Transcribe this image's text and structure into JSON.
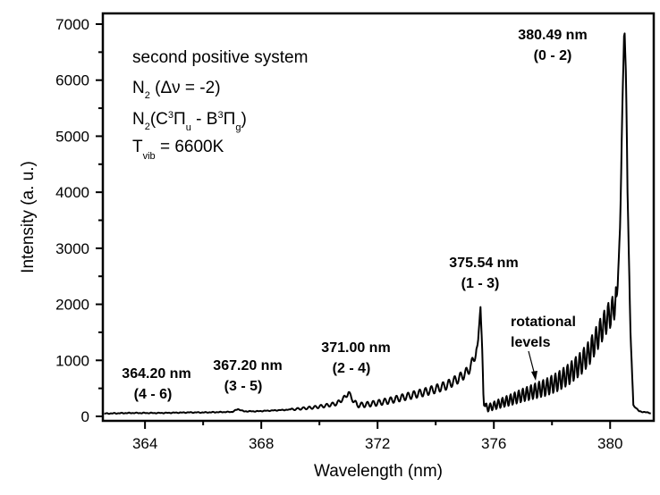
{
  "chart_data": {
    "type": "line",
    "title": "",
    "xlabel": "Wavelength (nm)",
    "ylabel": "Intensity (a. u.)",
    "xlim": [
      362.55,
      381.5
    ],
    "ylim": [
      0,
      7000
    ],
    "grid": false,
    "x_ticks": [
      364,
      368,
      372,
      376,
      380
    ],
    "x_tick_labels": [
      "364",
      "368",
      "372",
      "376",
      "380"
    ],
    "x_minor_ticks": [
      366,
      370,
      374,
      378
    ],
    "y_ticks": [
      0,
      1000,
      2000,
      3000,
      4000,
      5000,
      6000,
      7000
    ],
    "y_tick_labels": [
      "0",
      "1000",
      "2000",
      "3000",
      "4000",
      "5000",
      "6000",
      "7000"
    ],
    "y_minor_ticks": [
      500,
      1500,
      2500,
      3500,
      4500,
      5500,
      6500
    ],
    "series": [
      {
        "name": "N2 second positive system spectrum",
        "color": "#000000",
        "x": [
          362.6,
          363.0,
          363.5,
          364.0,
          364.5,
          365.0,
          365.5,
          366.0,
          366.5,
          367.0,
          367.2,
          367.4,
          367.8,
          368.2,
          368.6,
          369.0,
          369.4,
          369.8,
          370.2,
          370.6,
          370.9,
          371.0,
          371.1,
          371.3,
          371.6,
          372.0,
          372.4,
          372.8,
          373.2,
          373.6,
          374.0,
          374.4,
          374.8,
          375.1,
          375.3,
          375.45,
          375.54,
          375.6,
          375.65,
          375.8,
          376.2,
          376.6,
          377.0,
          377.4,
          377.8,
          378.2,
          378.6,
          379.0,
          379.3,
          379.6,
          379.9,
          380.1,
          380.25,
          380.35,
          380.42,
          380.49,
          380.55,
          380.6,
          380.7,
          380.8,
          381.0,
          381.4
        ],
        "y": [
          50,
          55,
          60,
          60,
          60,
          65,
          70,
          70,
          75,
          80,
          130,
          90,
          90,
          100,
          110,
          120,
          140,
          160,
          190,
          230,
          350,
          430,
          330,
          200,
          210,
          240,
          280,
          330,
          380,
          430,
          490,
          560,
          680,
          800,
          1000,
          1300,
          1950,
          1200,
          200,
          150,
          230,
          300,
          380,
          450,
          520,
          620,
          760,
          950,
          1150,
          1450,
          1750,
          1900,
          2200,
          3500,
          5500,
          7000,
          6000,
          4000,
          1500,
          200,
          90,
          60
        ]
      }
    ],
    "annotations": [
      {
        "id": "peak-380-49",
        "wavelength": "380.49 nm",
        "transition": "(0 - 2)",
        "x": 380.49
      },
      {
        "id": "peak-375-54",
        "wavelength": "375.54 nm",
        "transition": "(1 - 3)",
        "x": 375.54
      },
      {
        "id": "peak-371-00",
        "wavelength": "371.00 nm",
        "transition": "(2 - 4)",
        "x": 371.0
      },
      {
        "id": "peak-367-20",
        "wavelength": "367.20 nm",
        "transition": "(3 - 5)",
        "x": 367.2
      },
      {
        "id": "peak-364-20",
        "wavelength": "364.20 nm",
        "transition": "(4 - 6)",
        "x": 364.2
      }
    ],
    "arrow_annotation": {
      "line1": "rotational",
      "line2": "levels"
    },
    "legend_block": {
      "line1": "second positive system",
      "line2_main": "N",
      "line2_sub": "2",
      "line2_rest": " (Δν = -2)",
      "line3_main": "N",
      "line3_sub": "2",
      "line3_a": "(C",
      "line3_sup1": "3",
      "line3_pi1": "Π",
      "line3_sub_u": "u",
      "line3_b": " - B",
      "line3_sup2": "3",
      "line3_pi2": "Π",
      "line3_sub_g": "g",
      "line3_c": ")",
      "line4_main": "T",
      "line4_sub": "vib",
      "line4_rest": " = 6600K",
      "placement": "top-left"
    }
  }
}
